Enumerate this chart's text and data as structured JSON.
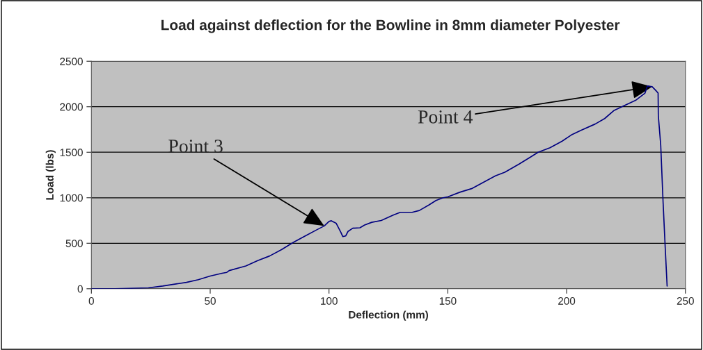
{
  "chart_data": {
    "type": "line",
    "title": "Load against deflection for the Bowline in 8mm diameter Polyester",
    "xlabel": "Deflection (mm)",
    "ylabel": "Load (lbs)",
    "xlim": [
      0,
      250
    ],
    "xticks": [
      0,
      50,
      100,
      150,
      200,
      250
    ],
    "ylim": [
      0,
      2500
    ],
    "yticks": [
      0,
      500,
      1000,
      1500,
      2000,
      2500
    ],
    "grid": "y",
    "annotations": [
      {
        "text": "Point 3",
        "x": 98,
        "y": 690
      },
      {
        "text": "Point 4",
        "x": 236,
        "y": 2220
      }
    ],
    "series": [
      {
        "color": "#000080",
        "x": [
          0,
          10,
          24,
          30,
          40,
          45,
          50,
          55,
          57,
          58,
          65,
          70,
          75,
          80,
          85,
          90,
          95,
          98,
          100,
          101,
          103,
          105,
          105.8,
          107,
          108,
          110,
          113,
          115,
          118,
          122,
          127,
          130,
          135,
          138,
          142,
          145,
          148,
          150,
          155,
          160,
          165,
          170,
          174,
          180,
          185,
          188,
          193,
          198,
          202,
          206,
          212,
          216,
          220,
          224,
          229,
          233,
          234,
          236,
          237.5,
          238.5,
          238.6,
          239.6,
          240.6,
          241.5,
          242.3
        ],
        "values": [
          0,
          0,
          10,
          30,
          70,
          100,
          140,
          170,
          180,
          200,
          250,
          310,
          360,
          430,
          510,
          580,
          650,
          690,
          740,
          747,
          720,
          620,
          574,
          580,
          630,
          665,
          670,
          700,
          730,
          750,
          810,
          840,
          840,
          860,
          920,
          970,
          1000,
          1010,
          1060,
          1100,
          1170,
          1240,
          1280,
          1370,
          1450,
          1500,
          1550,
          1620,
          1690,
          1740,
          1810,
          1870,
          1960,
          2010,
          2070,
          2150,
          2228,
          2220,
          2180,
          2150,
          1900,
          1580,
          950,
          450,
          30
        ]
      }
    ]
  }
}
